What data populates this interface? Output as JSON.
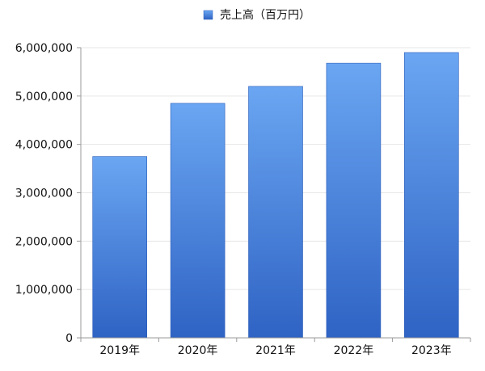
{
  "chart_data": {
    "type": "bar",
    "title": "",
    "xlabel": "",
    "ylabel": "",
    "categories": [
      "2019年",
      "2020年",
      "2021年",
      "2022年",
      "2023年"
    ],
    "series": [
      {
        "name": "売上高（百万円）",
        "values": [
          3750000,
          4850000,
          5200000,
          5680000,
          5900000
        ]
      }
    ],
    "ylim": [
      0,
      6000000
    ],
    "yticks": [
      0,
      1000000,
      2000000,
      3000000,
      4000000,
      5000000,
      6000000
    ],
    "ytick_labels": [
      "0",
      "1,000,000",
      "2,000,000",
      "3,000,000",
      "4,000,000",
      "5,000,000",
      "6,000,000"
    ],
    "grid": true,
    "legend_position": "top-center",
    "colors": {
      "bar_top": "#6aa6f2",
      "bar_bottom": "#2f63c4",
      "bar_edge": "#2a5cb8"
    }
  }
}
